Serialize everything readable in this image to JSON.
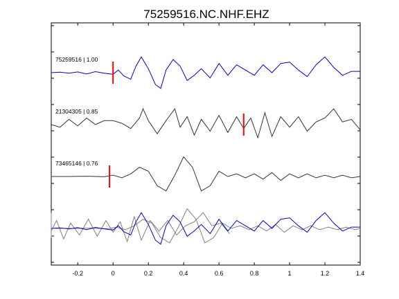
{
  "chart_data": {
    "type": "line",
    "title": "75259516.NC.NHF.EHZ",
    "xlabel": "",
    "ylabel": "",
    "xlim": [
      -0.35,
      1.4
    ],
    "x_ticks": [
      -0.2,
      0,
      0.2,
      0.4,
      0.6,
      0.8,
      1,
      1.2,
      1.4
    ],
    "x_tick_labels": [
      "-0.2",
      "0",
      "0.2",
      "0.4",
      "0.6",
      "0.8",
      "1",
      "1.2",
      "1.4"
    ],
    "grid": false,
    "legend": "none",
    "colors": {
      "reference": "#0000cc",
      "other": "#333333",
      "overlay": "#808080",
      "pick": "#ff0000"
    },
    "traces": [
      {
        "label": "75259516 | 1.00",
        "color": "#0000cc",
        "pick_time": 0.0,
        "x": [
          -0.35,
          -0.3,
          -0.25,
          -0.2,
          -0.15,
          -0.1,
          -0.05,
          0.0,
          0.03,
          0.06,
          0.1,
          0.13,
          0.16,
          0.2,
          0.24,
          0.27,
          0.3,
          0.34,
          0.38,
          0.42,
          0.46,
          0.5,
          0.55,
          0.6,
          0.65,
          0.7,
          0.75,
          0.8,
          0.85,
          0.9,
          0.95,
          1.0,
          1.05,
          1.1,
          1.15,
          1.2,
          1.25,
          1.3,
          1.35,
          1.4
        ],
        "y": [
          0.0,
          0.02,
          -0.02,
          0.03,
          -0.05,
          0.04,
          -0.02,
          -0.06,
          0.1,
          -0.12,
          -0.25,
          0.25,
          0.6,
          0.15,
          -0.45,
          -0.6,
          0.1,
          0.5,
          0.25,
          -0.3,
          -0.1,
          0.15,
          -0.2,
          0.35,
          -0.1,
          0.3,
          0.1,
          -0.1,
          0.3,
          0.0,
          0.35,
          0.4,
          0.1,
          -0.15,
          0.3,
          0.6,
          0.2,
          -0.1,
          0.05,
          0.05
        ]
      },
      {
        "label": "21304305 | 0.85",
        "color": "#333333",
        "pick_time": 0.74,
        "x": [
          -0.35,
          -0.3,
          -0.25,
          -0.2,
          -0.15,
          -0.1,
          -0.05,
          0.0,
          0.05,
          0.1,
          0.15,
          0.17,
          0.2,
          0.25,
          0.3,
          0.35,
          0.38,
          0.42,
          0.46,
          0.5,
          0.55,
          0.6,
          0.65,
          0.7,
          0.74,
          0.78,
          0.82,
          0.86,
          0.9,
          0.95,
          1.0,
          1.05,
          1.1,
          1.15,
          1.2,
          1.25,
          1.3,
          1.35,
          1.4
        ],
        "y": [
          0.0,
          -0.1,
          0.2,
          -0.05,
          0.25,
          0.0,
          0.15,
          0.15,
          0.05,
          -0.15,
          0.25,
          0.6,
          0.15,
          -0.35,
          0.15,
          0.6,
          -0.1,
          0.3,
          -0.4,
          0.2,
          -0.25,
          0.35,
          -0.3,
          0.3,
          -0.15,
          0.25,
          -0.5,
          0.45,
          -0.45,
          0.3,
          -0.1,
          0.3,
          -0.25,
          0.1,
          0.25,
          0.6,
          0.1,
          0.2,
          -0.2
        ]
      },
      {
        "label": "73465146 | 0.76",
        "color": "#333333",
        "pick_time": -0.02,
        "x": [
          -0.35,
          -0.25,
          -0.15,
          -0.05,
          0.0,
          0.05,
          0.1,
          0.15,
          0.2,
          0.25,
          0.3,
          0.35,
          0.4,
          0.45,
          0.5,
          0.55,
          0.6,
          0.65,
          0.7,
          0.75,
          0.8,
          0.85,
          0.9,
          0.95,
          1.0,
          1.05,
          1.1,
          1.15,
          1.2,
          1.25,
          1.3,
          1.35,
          1.4
        ],
        "y": [
          0.0,
          0.0,
          0.01,
          -0.01,
          0.05,
          -0.05,
          0.1,
          0.35,
          0.2,
          -0.35,
          -0.55,
          0.05,
          0.75,
          0.35,
          -0.55,
          -0.35,
          0.2,
          0.0,
          0.1,
          -0.05,
          0.1,
          -0.1,
          0.15,
          -0.15,
          0.1,
          -0.05,
          0.1,
          -0.05,
          0.05,
          -0.05,
          0.05,
          -0.05,
          0.0
        ]
      }
    ],
    "overlay": {
      "description_series": "all traces aligned on picks, reference in blue, others in gray"
    }
  }
}
